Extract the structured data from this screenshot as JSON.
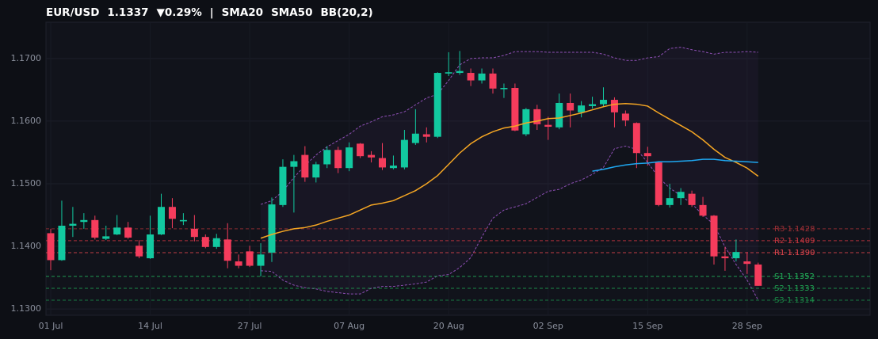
{
  "chart_data": {
    "type": "candlestick",
    "title": "EUR/USD",
    "last": 1.1337,
    "change_label": "▼0.29%",
    "up_color": "#12c9a0",
    "down_color": "#f53c5c",
    "grid": true,
    "categories": [
      "01 Jul",
      null,
      null,
      null,
      null,
      null,
      null,
      null,
      null,
      "14 Jul",
      null,
      null,
      null,
      null,
      null,
      null,
      null,
      null,
      "27 Jul",
      null,
      null,
      null,
      null,
      null,
      null,
      null,
      null,
      "07 Aug",
      null,
      null,
      null,
      null,
      null,
      null,
      null,
      null,
      "20 Aug",
      null,
      null,
      null,
      null,
      null,
      null,
      null,
      null,
      "02 Sep",
      null,
      null,
      null,
      null,
      null,
      null,
      null,
      null,
      "15 Sep",
      null,
      null,
      null,
      null,
      null,
      null,
      null,
      null,
      "28 Sep",
      null
    ],
    "open": [
      1.1421,
      1.1378,
      1.1433,
      1.1439,
      1.1442,
      1.1412,
      1.1419,
      1.143,
      1.1401,
      1.1381,
      1.1419,
      1.1463,
      1.144,
      1.1428,
      1.1415,
      1.1399,
      1.1411,
      1.1376,
      1.1392,
      1.1369,
      1.139,
      1.1466,
      1.1527,
      1.1546,
      1.151,
      1.1531,
      1.1554,
      1.1525,
      1.1564,
      1.1546,
      1.1541,
      1.1525,
      1.1526,
      1.1565,
      1.1579,
      1.1575,
      1.1676,
      1.1677,
      1.1677,
      1.1665,
      1.1676,
      1.1651,
      1.1653,
      1.1579,
      1.1619,
      1.1594,
      1.159,
      1.1629,
      1.1614,
      1.1624,
      1.1627,
      1.1634,
      1.1612,
      1.1597,
      1.1549,
      1.1534,
      1.1466,
      1.1477,
      1.1484,
      1.1466,
      1.1449,
      1.1384,
      1.1381,
      1.1376,
      1.1371
    ],
    "high": [
      1.1428,
      1.1473,
      1.1463,
      1.1453,
      1.1449,
      1.1433,
      1.145,
      1.1439,
      1.141,
      1.1449,
      1.1484,
      1.1477,
      1.1453,
      1.145,
      1.1419,
      1.142,
      1.1437,
      1.1387,
      1.1401,
      1.1405,
      1.1478,
      1.1539,
      1.1546,
      1.156,
      1.1535,
      1.156,
      1.1559,
      1.1566,
      1.1565,
      1.1552,
      1.1565,
      1.1545,
      1.1586,
      1.1619,
      1.159,
      1.1678,
      1.171,
      1.1712,
      1.1684,
      1.1684,
      1.1684,
      1.166,
      1.166,
      1.1621,
      1.1626,
      1.1607,
      1.1644,
      1.1644,
      1.1632,
      1.1639,
      1.1654,
      1.1638,
      1.1617,
      1.1598,
      1.1559,
      1.1536,
      1.15,
      1.1493,
      1.1489,
      1.1479,
      1.145,
      1.1399,
      1.1411,
      1.1391,
      1.1374
    ],
    "low": [
      1.1362,
      1.1377,
      1.1415,
      1.1428,
      1.1411,
      1.141,
      1.1418,
      1.1412,
      1.1381,
      1.138,
      1.1418,
      1.1429,
      1.1434,
      1.1408,
      1.1397,
      1.1396,
      1.1365,
      1.1365,
      1.1367,
      1.1352,
      1.1375,
      1.1463,
      1.1454,
      1.1503,
      1.1502,
      1.1525,
      1.1517,
      1.152,
      1.1541,
      1.1534,
      1.1522,
      1.1523,
      1.1523,
      1.1562,
      1.1566,
      1.1573,
      1.1672,
      1.1674,
      1.1656,
      1.166,
      1.1644,
      1.1637,
      1.1584,
      1.1576,
      1.1586,
      1.157,
      1.1587,
      1.159,
      1.1606,
      1.162,
      1.1624,
      1.159,
      1.1592,
      1.1525,
      1.1529,
      1.1464,
      1.1462,
      1.1466,
      1.1463,
      1.1447,
      1.1371,
      1.1361,
      1.1376,
      1.1356,
      1.1337
    ],
    "close": [
      1.1378,
      1.1433,
      1.1436,
      1.1442,
      1.1414,
      1.1416,
      1.143,
      1.1414,
      1.1384,
      1.1419,
      1.1463,
      1.1444,
      1.1442,
      1.1415,
      1.1399,
      1.1413,
      1.1377,
      1.1369,
      1.1369,
      1.1387,
      1.1467,
      1.1527,
      1.1536,
      1.151,
      1.1531,
      1.1554,
      1.1525,
      1.1558,
      1.1544,
      1.1542,
      1.1526,
      1.1529,
      1.157,
      1.158,
      1.1575,
      1.1677,
      1.1678,
      1.168,
      1.1665,
      1.1676,
      1.1652,
      1.1653,
      1.1585,
      1.1619,
      1.1595,
      1.1591,
      1.1629,
      1.1617,
      1.1625,
      1.1627,
      1.1634,
      1.1614,
      1.1601,
      1.1549,
      1.1544,
      1.1466,
      1.1477,
      1.1487,
      1.1466,
      1.1449,
      1.1384,
      1.1381,
      1.1391,
      1.1372,
      1.1337
    ],
    "series": [
      {
        "name": "SMA20",
        "color": "#f5a623",
        "values": [
          null,
          null,
          null,
          null,
          null,
          null,
          null,
          null,
          null,
          null,
          null,
          null,
          null,
          null,
          null,
          null,
          null,
          null,
          null,
          1.1413,
          1.1419,
          1.1424,
          1.1428,
          1.143,
          1.1434,
          1.144,
          1.1445,
          1.145,
          1.1458,
          1.1466,
          1.1469,
          1.1473,
          1.1481,
          1.1489,
          1.15,
          1.1513,
          1.1531,
          1.1549,
          1.1564,
          1.1575,
          1.1583,
          1.1589,
          1.1592,
          1.1597,
          1.16,
          1.1604,
          1.1605,
          1.1609,
          1.1613,
          1.1618,
          1.1623,
          1.1627,
          1.1628,
          1.1627,
          1.1624,
          1.1613,
          1.1603,
          1.1593,
          1.1583,
          1.157,
          1.1555,
          1.1542,
          1.1534,
          1.1525,
          1.1512
        ]
      },
      {
        "name": "SMA50",
        "color": "#1ea7f0",
        "values": [
          null,
          null,
          null,
          null,
          null,
          null,
          null,
          null,
          null,
          null,
          null,
          null,
          null,
          null,
          null,
          null,
          null,
          null,
          null,
          null,
          null,
          null,
          null,
          null,
          null,
          null,
          null,
          null,
          null,
          null,
          null,
          null,
          null,
          null,
          null,
          null,
          null,
          null,
          null,
          null,
          null,
          null,
          null,
          null,
          null,
          null,
          null,
          null,
          null,
          1.152,
          1.1523,
          1.1527,
          1.153,
          1.1532,
          1.1533,
          1.1535,
          1.1535,
          1.1536,
          1.1537,
          1.1539,
          1.1539,
          1.1537,
          1.1536,
          1.1535,
          1.1534
        ]
      },
      {
        "name": "BB(20,2)",
        "color": "#8e4fb5",
        "upper": [
          null,
          null,
          null,
          null,
          null,
          null,
          null,
          null,
          null,
          null,
          null,
          null,
          null,
          null,
          null,
          null,
          null,
          null,
          null,
          1.1467,
          1.1473,
          1.1488,
          1.151,
          1.1529,
          1.1546,
          1.1559,
          1.1569,
          1.1579,
          1.1592,
          1.1599,
          1.1607,
          1.161,
          1.1615,
          1.1626,
          1.1637,
          1.1643,
          1.1665,
          1.169,
          1.17,
          1.1701,
          1.1701,
          1.1705,
          1.1711,
          1.1711,
          1.1711,
          1.171,
          1.171,
          1.171,
          1.171,
          1.171,
          1.1707,
          1.1701,
          1.1697,
          1.1697,
          1.1701,
          1.1703,
          1.1716,
          1.1718,
          1.1714,
          1.1711,
          1.1707,
          1.171,
          1.171,
          1.1711,
          1.171
        ],
        "lower": [
          null,
          null,
          null,
          null,
          null,
          null,
          null,
          null,
          null,
          null,
          null,
          null,
          null,
          null,
          null,
          null,
          null,
          null,
          null,
          1.1361,
          1.136,
          1.1346,
          1.1338,
          1.1334,
          1.1332,
          1.1328,
          1.1326,
          1.1324,
          1.1324,
          1.1333,
          1.1336,
          1.1336,
          1.1338,
          1.134,
          1.1343,
          1.1353,
          1.1355,
          1.1366,
          1.1382,
          1.1415,
          1.1445,
          1.1458,
          1.1463,
          1.1468,
          1.1478,
          1.1488,
          1.1491,
          1.15,
          1.1506,
          1.1515,
          1.1526,
          1.1556,
          1.156,
          1.1555,
          1.1534,
          1.151,
          1.1493,
          1.1481,
          1.1468,
          1.145,
          1.1435,
          1.1399,
          1.1371,
          1.1346,
          1.1314
        ]
      }
    ],
    "levels": [
      {
        "value": 1.1428,
        "label": "R3 1.1428",
        "color": "#9c2f35"
      },
      {
        "value": 1.1409,
        "label": "R2 1.1409",
        "color": "#c8363f"
      },
      {
        "value": 1.139,
        "label": "R1 1.1390",
        "color": "#e0444c"
      },
      {
        "value": 1.1352,
        "label": "S1 1.1352",
        "color": "#22b35a"
      },
      {
        "value": 1.1333,
        "label": "S2 1.1333",
        "color": "#1e9e50"
      },
      {
        "value": 1.1314,
        "label": "S3 1.1314",
        "color": "#1a8a46"
      }
    ],
    "ylim": [
      1.129,
      1.1758
    ],
    "yticks": [
      {
        "value": 1.13,
        "label": "1.1300"
      },
      {
        "value": 1.14,
        "label": "1.1400"
      },
      {
        "value": 1.15,
        "label": "1.1500"
      },
      {
        "value": 1.16,
        "label": "1.1600"
      },
      {
        "value": 1.17,
        "label": "1.1700"
      }
    ]
  }
}
